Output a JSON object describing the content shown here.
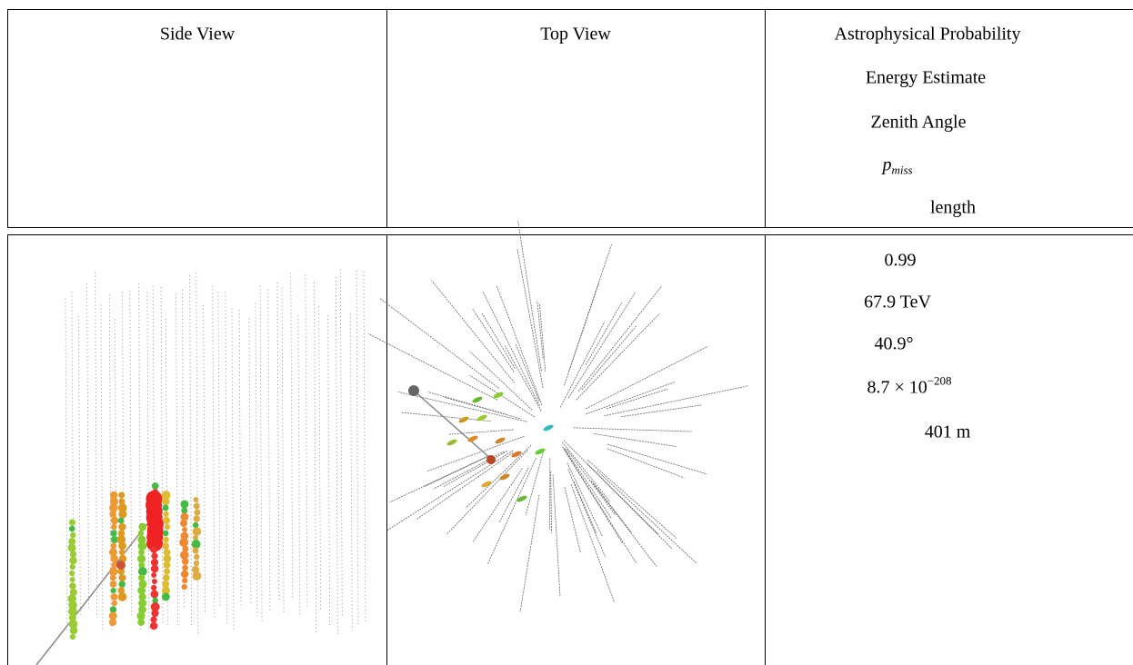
{
  "header": {
    "side_view": "Side View",
    "top_view": "Top View",
    "quantities": [
      "Astrophysical Probability",
      "Energy Estimate",
      "Zenith Angle",
      {
        "base": "p",
        "subscript": "miss"
      },
      "length"
    ]
  },
  "row": {
    "values": [
      "0.99",
      "67.9 TeV",
      "40.9°",
      {
        "mantissa": "8.7 × 10",
        "exponent": "−208"
      },
      "401 m"
    ]
  }
}
